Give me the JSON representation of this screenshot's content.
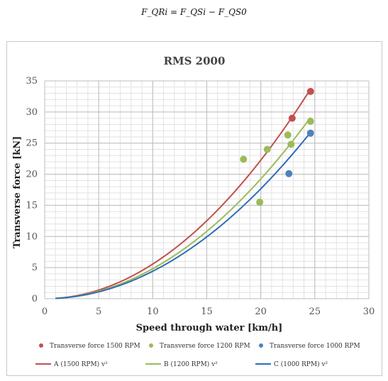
{
  "formula": "F_QRi = F_QSi − F_QS0",
  "chart_data": {
    "type": "scatter",
    "title": "RMS 2000",
    "xlabel": "Speed through water [km/h]",
    "ylabel": "Transverse force [kN]",
    "xlim": [
      0,
      30
    ],
    "ylim": [
      0,
      35
    ],
    "x_ticks": [
      0,
      5,
      10,
      15,
      20,
      25,
      30
    ],
    "y_ticks": [
      0,
      5,
      10,
      15,
      20,
      25,
      30,
      35
    ],
    "grid": true,
    "legend_position": "bottom",
    "series": [
      {
        "name": "Transverse force 1500 RPM",
        "kind": "points",
        "color": "#c0504d",
        "x": [
          22.9,
          24.6
        ],
        "y": [
          29.0,
          33.3
        ]
      },
      {
        "name": "Transverse force 1200 RPM",
        "kind": "points",
        "color": "#9bbb59",
        "x": [
          18.4,
          19.9,
          20.6,
          22.5,
          22.8,
          24.6
        ],
        "y": [
          22.4,
          15.5,
          24.0,
          26.3,
          24.8,
          28.5
        ]
      },
      {
        "name": "Transverse force 1000 RPM",
        "kind": "points",
        "color": "#4f81bd",
        "x": [
          22.6,
          24.6
        ],
        "y": [
          20.1,
          26.6
        ]
      },
      {
        "name": "A (1500 RPM) v²",
        "kind": "curve",
        "color": "#c0504d",
        "coef": 0.05565,
        "x_range": [
          1,
          24.6
        ]
      },
      {
        "name": "B (1200 RPM) v²",
        "kind": "curve",
        "color": "#9bbb59",
        "coef": 0.04811,
        "x_range": [
          1,
          24.6
        ]
      },
      {
        "name": "C (1000 RPM) v²",
        "kind": "curve",
        "color": "#2e6db5",
        "coef": 0.04415,
        "x_range": [
          1,
          24.6
        ]
      }
    ]
  }
}
